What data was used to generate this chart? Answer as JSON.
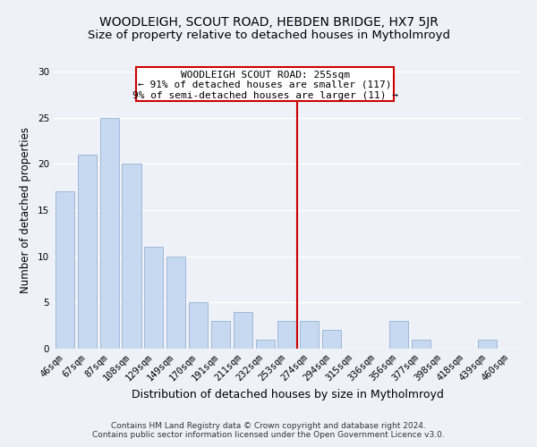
{
  "title": "WOODLEIGH, SCOUT ROAD, HEBDEN BRIDGE, HX7 5JR",
  "subtitle": "Size of property relative to detached houses in Mytholmroyd",
  "xlabel": "Distribution of detached houses by size in Mytholmroyd",
  "ylabel": "Number of detached properties",
  "bar_labels": [
    "46sqm",
    "67sqm",
    "87sqm",
    "108sqm",
    "129sqm",
    "149sqm",
    "170sqm",
    "191sqm",
    "211sqm",
    "232sqm",
    "253sqm",
    "274sqm",
    "294sqm",
    "315sqm",
    "336sqm",
    "356sqm",
    "377sqm",
    "398sqm",
    "418sqm",
    "439sqm",
    "460sqm"
  ],
  "bar_values": [
    17,
    21,
    25,
    20,
    11,
    10,
    5,
    3,
    4,
    1,
    3,
    3,
    2,
    0,
    0,
    3,
    1,
    0,
    0,
    1,
    0
  ],
  "bar_color": "#c6d9f0",
  "bar_edge_color": "#a0b8d8",
  "subject_bar_index": 10,
  "subject_line_color": "#cc0000",
  "ylim": [
    0,
    30
  ],
  "yticks": [
    0,
    5,
    10,
    15,
    20,
    25,
    30
  ],
  "annotation_title": "WOODLEIGH SCOUT ROAD: 255sqm",
  "annotation_line1": "← 91% of detached houses are smaller (117)",
  "annotation_line2": "9% of semi-detached houses are larger (11) →",
  "annotation_box_color": "#ffffff",
  "annotation_box_edge": "#cc0000",
  "footer_line1": "Contains HM Land Registry data © Crown copyright and database right 2024.",
  "footer_line2": "Contains public sector information licensed under the Open Government Licence v3.0.",
  "background_color": "#eef2f8",
  "grid_color": "#ffffff",
  "title_fontsize": 10,
  "subtitle_fontsize": 9.5,
  "xlabel_fontsize": 9,
  "ylabel_fontsize": 8.5,
  "tick_fontsize": 7.5,
  "annotation_fontsize": 8,
  "footer_fontsize": 6.5
}
